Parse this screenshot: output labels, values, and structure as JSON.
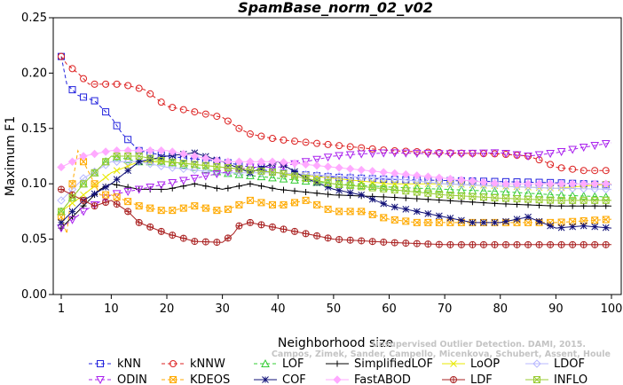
{
  "chart_data": {
    "type": "line",
    "title": "SpamBase_norm_02_v02",
    "xlabel": "Neighborhood size",
    "ylabel": "Maximum F1",
    "xlim": [
      1,
      100
    ],
    "ylim": [
      0,
      0.25
    ],
    "xticks": [
      1,
      10,
      20,
      30,
      40,
      50,
      60,
      70,
      80,
      90,
      100
    ],
    "xtick_labels": [
      "1",
      "10",
      "20",
      "30",
      "40",
      "50",
      "60",
      "70",
      "80",
      "90",
      "100"
    ],
    "yticks": [
      0,
      0.05,
      0.1,
      0.15,
      0.2,
      0.25
    ],
    "ytick_labels": [
      "0.00",
      "0.05",
      "0.10",
      "0.15",
      "0.20",
      "0.25"
    ],
    "grid": false,
    "legend_position": "bottom",
    "watermark": [
      "Unsupervised Outlier Detection. DAMI, 2015.",
      "Campos, Zimek, Sander, Campello, Micenkova, Schubert, Assent, Houle"
    ],
    "series": [
      {
        "name": "kNN",
        "color": "#2222dd",
        "marker": "square",
        "dash": "4,3",
        "points": [
          [
            1,
            0.215
          ],
          [
            2,
            0.19
          ],
          [
            4,
            0.18
          ],
          [
            7,
            0.175
          ],
          [
            10,
            0.16
          ],
          [
            12,
            0.145
          ],
          [
            15,
            0.13
          ],
          [
            20,
            0.125
          ],
          [
            30,
            0.12
          ],
          [
            40,
            0.11
          ],
          [
            50,
            0.106
          ],
          [
            60,
            0.104
          ],
          [
            70,
            0.103
          ],
          [
            80,
            0.102
          ],
          [
            90,
            0.101
          ],
          [
            100,
            0.099
          ]
        ]
      },
      {
        "name": "kNNW",
        "color": "#dd2222",
        "marker": "circle",
        "dash": "4,3",
        "points": [
          [
            1,
            0.215
          ],
          [
            2,
            0.208
          ],
          [
            4,
            0.2
          ],
          [
            6,
            0.19
          ],
          [
            9,
            0.19
          ],
          [
            12,
            0.19
          ],
          [
            16,
            0.185
          ],
          [
            20,
            0.17
          ],
          [
            25,
            0.165
          ],
          [
            30,
            0.16
          ],
          [
            33,
            0.15
          ],
          [
            35,
            0.145
          ],
          [
            40,
            0.14
          ],
          [
            50,
            0.135
          ],
          [
            60,
            0.13
          ],
          [
            70,
            0.128
          ],
          [
            80,
            0.127
          ],
          [
            85,
            0.125
          ],
          [
            88,
            0.12
          ],
          [
            90,
            0.115
          ],
          [
            95,
            0.112
          ],
          [
            100,
            0.112
          ]
        ]
      },
      {
        "name": "LOF",
        "color": "#33cc33",
        "marker": "triangle",
        "dash": "4,3",
        "points": [
          [
            1,
            0.075
          ],
          [
            5,
            0.1
          ],
          [
            10,
            0.125
          ],
          [
            15,
            0.12
          ],
          [
            20,
            0.12
          ],
          [
            30,
            0.11
          ],
          [
            40,
            0.105
          ],
          [
            50,
            0.1
          ],
          [
            60,
            0.097
          ],
          [
            70,
            0.095
          ],
          [
            80,
            0.093
          ],
          [
            90,
            0.09
          ],
          [
            100,
            0.088
          ]
        ]
      },
      {
        "name": "SimplifiedLOF",
        "color": "#000000",
        "marker": "plus",
        "dash": "",
        "points": [
          [
            1,
            0.06
          ],
          [
            3,
            0.07
          ],
          [
            5,
            0.08
          ],
          [
            8,
            0.095
          ],
          [
            10,
            0.1
          ],
          [
            15,
            0.095
          ],
          [
            20,
            0.095
          ],
          [
            25,
            0.1
          ],
          [
            30,
            0.095
          ],
          [
            35,
            0.1
          ],
          [
            40,
            0.095
          ],
          [
            50,
            0.09
          ],
          [
            60,
            0.088
          ],
          [
            70,
            0.085
          ],
          [
            80,
            0.082
          ],
          [
            90,
            0.08
          ],
          [
            100,
            0.08
          ]
        ]
      },
      {
        "name": "LoOP",
        "color": "#e8e800",
        "marker": "x",
        "dash": "",
        "points": [
          [
            1,
            0.075
          ],
          [
            5,
            0.09
          ],
          [
            10,
            0.11
          ],
          [
            15,
            0.12
          ],
          [
            20,
            0.12
          ],
          [
            30,
            0.115
          ],
          [
            40,
            0.11
          ],
          [
            50,
            0.105
          ],
          [
            60,
            0.1
          ],
          [
            70,
            0.1
          ],
          [
            80,
            0.098
          ],
          [
            90,
            0.096
          ],
          [
            100,
            0.1
          ]
        ]
      },
      {
        "name": "LDOF",
        "color": "#b8b8ff",
        "marker": "diamond",
        "dash": "",
        "points": [
          [
            1,
            0.085
          ],
          [
            5,
            0.105
          ],
          [
            10,
            0.12
          ],
          [
            15,
            0.12
          ],
          [
            20,
            0.115
          ],
          [
            30,
            0.11
          ],
          [
            40,
            0.11
          ],
          [
            50,
            0.107
          ],
          [
            60,
            0.105
          ],
          [
            70,
            0.1
          ],
          [
            80,
            0.098
          ],
          [
            90,
            0.096
          ],
          [
            100,
            0.095
          ]
        ]
      },
      {
        "name": "ODIN",
        "color": "#aa22ee",
        "marker": "triangle-down",
        "dash": "4,3",
        "points": [
          [
            1,
            0.06
          ],
          [
            5,
            0.075
          ],
          [
            10,
            0.09
          ],
          [
            15,
            0.095
          ],
          [
            20,
            0.1
          ],
          [
            25,
            0.105
          ],
          [
            30,
            0.11
          ],
          [
            35,
            0.115
          ],
          [
            40,
            0.115
          ],
          [
            45,
            0.12
          ],
          [
            50,
            0.125
          ],
          [
            55,
            0.127
          ],
          [
            60,
            0.128
          ],
          [
            70,
            0.127
          ],
          [
            80,
            0.128
          ],
          [
            85,
            0.125
          ],
          [
            90,
            0.128
          ],
          [
            95,
            0.133
          ],
          [
            100,
            0.137
          ]
        ]
      },
      {
        "name": "KDEOS",
        "color": "#ffaa00",
        "marker": "square-x",
        "dash": "4,3",
        "points": [
          [
            1,
            0.07
          ],
          [
            2,
            0.055
          ],
          [
            3,
            0.1
          ],
          [
            4,
            0.13
          ],
          [
            6,
            0.11
          ],
          [
            8,
            0.09
          ],
          [
            10,
            0.09
          ],
          [
            15,
            0.08
          ],
          [
            20,
            0.075
          ],
          [
            25,
            0.08
          ],
          [
            30,
            0.075
          ],
          [
            35,
            0.085
          ],
          [
            40,
            0.08
          ],
          [
            45,
            0.085
          ],
          [
            50,
            0.075
          ],
          [
            55,
            0.075
          ],
          [
            60,
            0.068
          ],
          [
            65,
            0.065
          ],
          [
            70,
            0.065
          ],
          [
            80,
            0.065
          ],
          [
            90,
            0.065
          ],
          [
            100,
            0.068
          ]
        ]
      },
      {
        "name": "COF",
        "color": "#111177",
        "marker": "star",
        "dash": "",
        "points": [
          [
            1,
            0.065
          ],
          [
            5,
            0.085
          ],
          [
            10,
            0.1
          ],
          [
            15,
            0.12
          ],
          [
            20,
            0.125
          ],
          [
            25,
            0.128
          ],
          [
            30,
            0.12
          ],
          [
            35,
            0.11
          ],
          [
            40,
            0.12
          ],
          [
            45,
            0.105
          ],
          [
            50,
            0.095
          ],
          [
            55,
            0.09
          ],
          [
            60,
            0.08
          ],
          [
            65,
            0.075
          ],
          [
            70,
            0.07
          ],
          [
            75,
            0.065
          ],
          [
            80,
            0.065
          ],
          [
            85,
            0.07
          ],
          [
            90,
            0.06
          ],
          [
            95,
            0.062
          ],
          [
            100,
            0.06
          ]
        ]
      },
      {
        "name": "FastABOD",
        "color": "#ffaaff",
        "marker": "diamond-filled",
        "dash": "",
        "points": [
          [
            1,
            0.115
          ],
          [
            5,
            0.125
          ],
          [
            10,
            0.13
          ],
          [
            15,
            0.13
          ],
          [
            20,
            0.13
          ],
          [
            30,
            0.12
          ],
          [
            40,
            0.12
          ],
          [
            50,
            0.115
          ],
          [
            60,
            0.11
          ],
          [
            70,
            0.105
          ],
          [
            80,
            0.1
          ],
          [
            90,
            0.1
          ],
          [
            100,
            0.1
          ]
        ]
      },
      {
        "name": "LDF",
        "color": "#aa2222",
        "marker": "circle-plus",
        "dash": "",
        "points": [
          [
            1,
            0.095
          ],
          [
            3,
            0.09
          ],
          [
            5,
            0.085
          ],
          [
            7,
            0.08
          ],
          [
            10,
            0.085
          ],
          [
            13,
            0.075
          ],
          [
            15,
            0.065
          ],
          [
            20,
            0.055
          ],
          [
            25,
            0.048
          ],
          [
            30,
            0.047
          ],
          [
            32,
            0.055
          ],
          [
            33,
            0.062
          ],
          [
            35,
            0.065
          ],
          [
            40,
            0.06
          ],
          [
            45,
            0.055
          ],
          [
            50,
            0.05
          ],
          [
            60,
            0.047
          ],
          [
            70,
            0.045
          ],
          [
            80,
            0.045
          ],
          [
            90,
            0.045
          ],
          [
            100,
            0.045
          ]
        ]
      },
      {
        "name": "INFLO",
        "color": "#99cc33",
        "marker": "square-x",
        "dash": "",
        "points": [
          [
            1,
            0.075
          ],
          [
            5,
            0.1
          ],
          [
            10,
            0.125
          ],
          [
            15,
            0.125
          ],
          [
            20,
            0.12
          ],
          [
            30,
            0.115
          ],
          [
            40,
            0.11
          ],
          [
            50,
            0.1
          ],
          [
            60,
            0.095
          ],
          [
            70,
            0.09
          ],
          [
            80,
            0.087
          ],
          [
            90,
            0.085
          ],
          [
            100,
            0.085
          ]
        ]
      }
    ]
  }
}
